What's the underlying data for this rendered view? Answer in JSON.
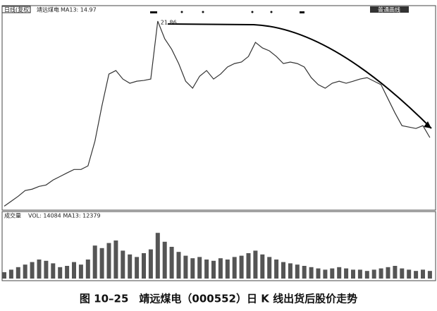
{
  "header": {
    "mode": "日线(复权)",
    "name": "靖远煤电",
    "ma": "MA13: 14.97",
    "tool": "普通画线"
  },
  "volume_header": {
    "label": "成交量",
    "info": "VOL: 14084 MA13: 12379"
  },
  "caption": "图 10–25　靖远煤电（000552）日 K 线出货后股价走势",
  "chart_data": [
    {
      "type": "line",
      "color": "#333333",
      "ylim": [
        4.3,
        23.3
      ],
      "annotation": "21.86",
      "values": [
        4.67,
        5.13,
        5.59,
        6.12,
        6.25,
        6.51,
        6.64,
        7.1,
        7.43,
        7.76,
        8.08,
        8.08,
        8.41,
        10.71,
        13.99,
        16.94,
        17.27,
        16.48,
        16.09,
        16.28,
        16.35,
        16.48,
        21.86,
        20.22,
        19.24,
        17.92,
        16.28,
        15.63,
        16.74,
        17.27,
        16.48,
        16.94,
        17.6,
        17.92,
        18.06,
        18.58,
        19.89,
        19.37,
        19.1,
        18.58,
        17.92,
        18.06,
        17.92,
        17.6,
        16.61,
        15.96,
        15.63,
        16.09,
        16.28,
        16.09,
        16.28,
        16.48,
        16.61,
        16.28,
        15.96,
        14.64,
        13.33,
        12.15,
        12.02,
        11.89,
        12.15,
        11.04
      ]
    },
    {
      "type": "bar",
      "color": "#555555",
      "ylim": [
        0,
        100
      ],
      "values": [
        10,
        14,
        18,
        22,
        26,
        30,
        28,
        24,
        18,
        20,
        26,
        22,
        30,
        52,
        48,
        56,
        60,
        44,
        38,
        34,
        40,
        46,
        72,
        58,
        50,
        42,
        36,
        32,
        34,
        30,
        28,
        32,
        30,
        34,
        36,
        40,
        44,
        38,
        34,
        30,
        26,
        24,
        22,
        20,
        18,
        16,
        14,
        16,
        18,
        16,
        14,
        14,
        12,
        14,
        16,
        18,
        20,
        16,
        14,
        12,
        14,
        12
      ]
    }
  ]
}
